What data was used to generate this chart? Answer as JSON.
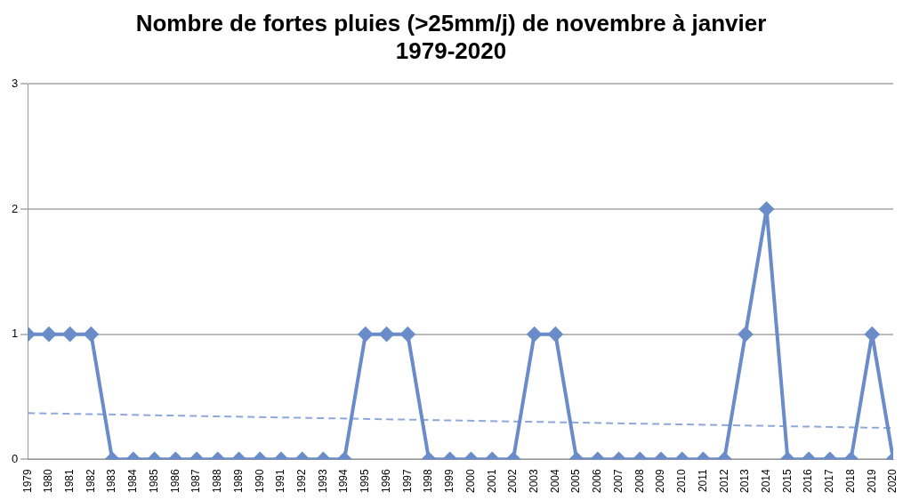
{
  "chart_data": {
    "type": "line",
    "title": "Nombre de fortes pluies (>25mm/j) de novembre à janvier 1979-2020",
    "x": [
      1979,
      1980,
      1981,
      1982,
      1983,
      1984,
      1985,
      1986,
      1987,
      1988,
      1989,
      1990,
      1991,
      1992,
      1993,
      1994,
      1995,
      1996,
      1997,
      1998,
      1999,
      2000,
      2001,
      2002,
      2003,
      2004,
      2005,
      2006,
      2007,
      2008,
      2009,
      2010,
      2011,
      2012,
      2013,
      2014,
      2015,
      2016,
      2017,
      2018,
      2019,
      2020
    ],
    "xlim": [
      1979,
      2020
    ],
    "xticks": [
      1979,
      1980,
      1981,
      1982,
      1983,
      1984,
      1985,
      1986,
      1987,
      1988,
      1989,
      1990,
      1991,
      1992,
      1993,
      1994,
      1995,
      1996,
      1997,
      1998,
      1999,
      2000,
      2001,
      2002,
      2003,
      2004,
      2005,
      2006,
      2007,
      2008,
      2009,
      2010,
      2011,
      2012,
      2013,
      2014,
      2015,
      2016,
      2017,
      2018,
      2019,
      2020
    ],
    "series": [
      {
        "color": "#6a8cc9",
        "marker": "diamond",
        "line_style": "solid",
        "values": [
          1,
          1,
          1,
          1,
          0,
          0,
          0,
          0,
          0,
          0,
          0,
          0,
          0,
          0,
          0,
          0,
          1,
          1,
          1,
          0,
          0,
          0,
          0,
          0,
          1,
          1,
          0,
          0,
          0,
          0,
          0,
          0,
          0,
          0,
          1,
          2,
          0,
          0,
          0,
          0,
          1,
          0
        ]
      },
      {
        "type": "line",
        "color": "#8fa8dc",
        "marker": "none",
        "line_style": "dashed",
        "x": [
          1979,
          2020
        ],
        "values": [
          0.37,
          0.25
        ]
      }
    ],
    "ylim": [
      0,
      3
    ],
    "yticks": [
      0,
      1,
      2,
      3
    ],
    "grid": "y",
    "legend": false
  }
}
